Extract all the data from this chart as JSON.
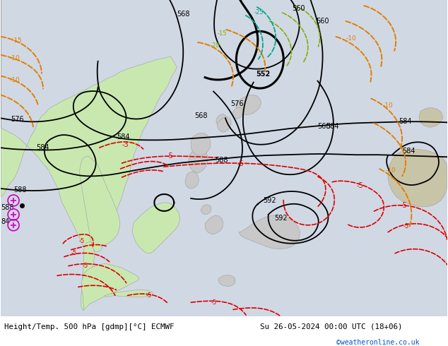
{
  "title_left": "Height/Temp. 500 hPa [gdmp][°C] ECMWF",
  "title_right": "Su 26-05-2024 00:00 UTC (18+06)",
  "watermark": "©weatheronline.co.uk",
  "ocean_color": "#d0d8e4",
  "land_green": "#c8e8b0",
  "land_gray": "#c8c8c8",
  "bottom_white": "#ffffff",
  "figsize": [
    6.34,
    4.9
  ],
  "dpi": 100
}
